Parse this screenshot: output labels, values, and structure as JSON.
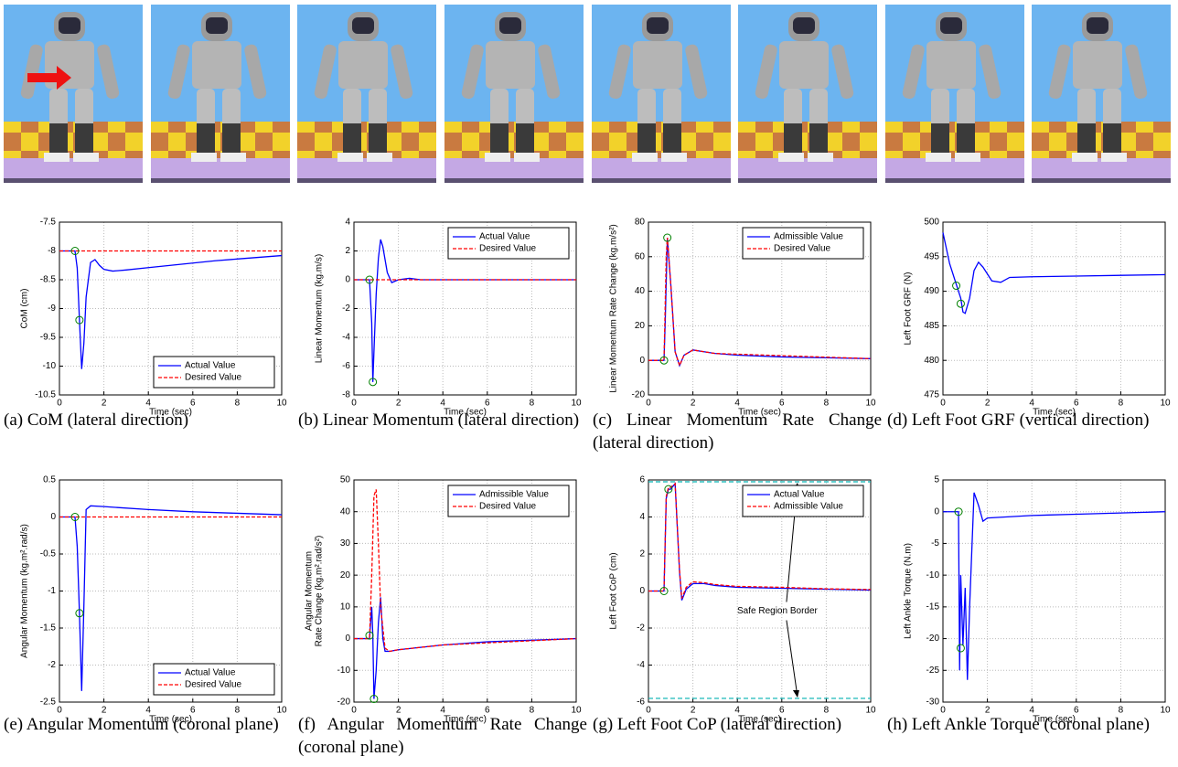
{
  "chart_data": [
    {
      "type": "line",
      "caption": "(a) CoM (lateral direction)",
      "xlabel": "Time (sec)",
      "ylabel": [
        "CoM (cm)"
      ],
      "xlim": [
        0,
        10
      ],
      "xticks": [
        0,
        2,
        4,
        6,
        8,
        10
      ],
      "ylim": [
        -10.5,
        -7.5
      ],
      "yticks": [
        -10.5,
        -10,
        -9.5,
        -9,
        -8.5,
        -8,
        -7.5
      ],
      "grid": true,
      "legend": "lower right",
      "series": [
        {
          "name": "Actual Value",
          "color": "#0000ff",
          "dash": false,
          "x": [
            0,
            0.7,
            0.8,
            0.9,
            1.0,
            1.1,
            1.2,
            1.4,
            1.6,
            1.8,
            2.0,
            2.4,
            3,
            4,
            5,
            6,
            7,
            8,
            9,
            10
          ],
          "values": [
            -8,
            -8,
            -8.3,
            -9.2,
            -10.05,
            -9.6,
            -8.8,
            -8.2,
            -8.15,
            -8.25,
            -8.32,
            -8.35,
            -8.33,
            -8.29,
            -8.25,
            -8.21,
            -8.17,
            -8.14,
            -8.11,
            -8.08
          ]
        },
        {
          "name": "Desired Value",
          "color": "#ff0000",
          "dash": true,
          "x": [
            0,
            10
          ],
          "values": [
            -8,
            -8
          ]
        }
      ],
      "markers": {
        "color": "#008000",
        "x": [
          0.7,
          0.9
        ],
        "values": [
          -8,
          -9.2
        ]
      }
    },
    {
      "type": "line",
      "caption": "(b) Linear Momentum (lateral direction)",
      "xlabel": "Time (sec)",
      "ylabel": [
        "Linear Momentum (kg.m/s)"
      ],
      "xlim": [
        0,
        10
      ],
      "xticks": [
        0,
        2,
        4,
        6,
        8,
        10
      ],
      "ylim": [
        -8,
        4
      ],
      "yticks": [
        -8,
        -6,
        -4,
        -2,
        0,
        2,
        4
      ],
      "grid": true,
      "legend": "upper right",
      "series": [
        {
          "name": "Actual Value",
          "color": "#0000ff",
          "dash": false,
          "x": [
            0,
            0.7,
            0.8,
            0.85,
            0.9,
            1.0,
            1.1,
            1.2,
            1.3,
            1.5,
            1.7,
            2,
            2.5,
            3,
            10
          ],
          "values": [
            0,
            0,
            -3,
            -7.1,
            -5,
            -1,
            1.5,
            2.8,
            2.3,
            0.5,
            -0.2,
            0,
            0.1,
            0,
            0
          ]
        },
        {
          "name": "Desired Value",
          "color": "#ff0000",
          "dash": true,
          "x": [
            0,
            10
          ],
          "values": [
            0,
            0
          ]
        }
      ],
      "markers": {
        "color": "#008000",
        "x": [
          0.7,
          0.85
        ],
        "values": [
          0,
          -7.1
        ]
      }
    },
    {
      "type": "line",
      "caption": "(c) Linear Momentum Rate Change (lateral direction)",
      "xlabel": "Time (sec)",
      "ylabel": [
        "Linear Momentum Rate Change (kg.m/s²)"
      ],
      "xlim": [
        0,
        10
      ],
      "xticks": [
        0,
        2,
        4,
        6,
        8,
        10
      ],
      "ylim": [
        -20,
        80
      ],
      "yticks": [
        -20,
        0,
        20,
        40,
        60,
        80
      ],
      "grid": true,
      "legend": "upper right",
      "series": [
        {
          "name": "Admissible Value",
          "color": "#0000ff",
          "dash": false,
          "x": [
            0,
            0.7,
            0.75,
            0.85,
            1.0,
            1.2,
            1.4,
            1.6,
            2,
            2.5,
            3,
            4,
            6,
            8,
            10
          ],
          "values": [
            0,
            0,
            20,
            71,
            45,
            5,
            -3,
            3,
            6,
            5,
            4,
            3,
            2,
            1.5,
            1
          ]
        },
        {
          "name": "Desired Value",
          "color": "#ff0000",
          "dash": true,
          "x": [
            0,
            0.7,
            0.8,
            0.85,
            1.0,
            1.2,
            1.4,
            1.6,
            2,
            3,
            10
          ],
          "values": [
            0,
            0,
            60,
            71,
            45,
            5,
            -3,
            3,
            6,
            4,
            1
          ]
        }
      ],
      "markers": {
        "color": "#008000",
        "x": [
          0.7,
          0.85
        ],
        "values": [
          0,
          71
        ]
      }
    },
    {
      "type": "line",
      "caption": "(d) Left Foot GRF (vertical direction)",
      "xlabel": "Time (sec)",
      "ylabel": [
        "Left Foot GRF (N)"
      ],
      "xlim": [
        0,
        10
      ],
      "xticks": [
        0,
        2,
        4,
        6,
        8,
        10
      ],
      "ylim": [
        475,
        500
      ],
      "yticks": [
        475,
        480,
        485,
        490,
        495,
        500
      ],
      "grid": true,
      "series": [
        {
          "color": "#0000ff",
          "dash": false,
          "x": [
            0,
            0.3,
            0.6,
            0.8,
            0.9,
            1.0,
            1.2,
            1.4,
            1.6,
            1.8,
            2.2,
            2.6,
            3,
            4,
            6,
            8,
            10
          ],
          "values": [
            498.5,
            494,
            491,
            489,
            487,
            486.8,
            489,
            493,
            494.2,
            493.5,
            491.5,
            491.3,
            492,
            492.1,
            492.2,
            492.3,
            492.4
          ]
        }
      ],
      "markers": {
        "color": "#008000",
        "x": [
          0.6,
          0.8
        ],
        "values": [
          490.8,
          488.2
        ]
      }
    },
    {
      "type": "line",
      "caption": "(e) Angular Momentum (coronal plane)",
      "xlabel": "Time (sec)",
      "ylabel": [
        "Angular Momentum (kg.m².rad/s)"
      ],
      "xlim": [
        0,
        10
      ],
      "xticks": [
        0,
        2,
        4,
        6,
        8,
        10
      ],
      "ylim": [
        -2.5,
        0.5
      ],
      "yticks": [
        -2.5,
        -2,
        -1.5,
        -1,
        -0.5,
        0,
        0.5
      ],
      "grid": true,
      "legend": "lower right",
      "series": [
        {
          "name": "Actual Value",
          "color": "#0000ff",
          "dash": false,
          "x": [
            0,
            0.7,
            0.8,
            0.9,
            1.0,
            1.1,
            1.2,
            1.4,
            2,
            4,
            6,
            8,
            10
          ],
          "values": [
            0,
            0,
            -0.4,
            -1.3,
            -2.35,
            -1.2,
            0.1,
            0.15,
            0.14,
            0.1,
            0.07,
            0.05,
            0.03
          ]
        },
        {
          "name": "Desired Value",
          "color": "#ff0000",
          "dash": true,
          "x": [
            0,
            10
          ],
          "values": [
            0,
            0
          ]
        }
      ],
      "markers": {
        "color": "#008000",
        "x": [
          0.7,
          0.9
        ],
        "values": [
          0,
          -1.3
        ]
      }
    },
    {
      "type": "line",
      "caption": "(f) Angular Momentum Rate Change (coronal plane)",
      "xlabel": "Time (sec)",
      "ylabel": [
        "Angular Momentum",
        "Rate Change (kg.m².rad/s²)"
      ],
      "xlim": [
        0,
        10
      ],
      "xticks": [
        0,
        2,
        4,
        6,
        8,
        10
      ],
      "ylim": [
        -20,
        50
      ],
      "yticks": [
        -20,
        -10,
        0,
        10,
        20,
        30,
        40,
        50
      ],
      "grid": true,
      "legend": "upper right",
      "series": [
        {
          "name": "Admissible Value",
          "color": "#0000ff",
          "dash": false,
          "x": [
            0,
            0.7,
            0.8,
            0.85,
            0.9,
            1.0,
            1.1,
            1.2,
            1.3,
            1.4,
            1.6,
            2,
            4,
            6,
            8,
            10
          ],
          "values": [
            0,
            0,
            10,
            1,
            -19,
            -10,
            5,
            13,
            0,
            -4,
            -4,
            -3.5,
            -2,
            -1,
            -0.5,
            0
          ]
        },
        {
          "name": "Desired Value",
          "color": "#ff0000",
          "dash": true,
          "x": [
            0,
            0.7,
            0.8,
            0.9,
            1.0,
            1.1,
            1.2,
            1.4,
            1.6,
            2,
            4,
            10
          ],
          "values": [
            0,
            0,
            20,
            45,
            47,
            30,
            10,
            -3,
            -4,
            -3.5,
            -2,
            0
          ]
        }
      ],
      "markers": {
        "color": "#008000",
        "x": [
          0.7,
          0.9
        ],
        "values": [
          1,
          -19
        ]
      }
    },
    {
      "type": "line",
      "caption": "(g) Left Foot CoP (lateral direction)",
      "xlabel": "Time (sec)",
      "ylabel": [
        "Left Foot CoP (cm)"
      ],
      "xlim": [
        0,
        10
      ],
      "xticks": [
        0,
        2,
        4,
        6,
        8,
        10
      ],
      "ylim": [
        -6,
        6
      ],
      "yticks": [
        -6,
        -4,
        -2,
        0,
        2,
        4,
        6
      ],
      "grid": true,
      "legend": "upper right",
      "series": [
        {
          "name": "Actual Value",
          "color": "#0000ff",
          "dash": false,
          "x": [
            0,
            0.7,
            0.8,
            0.9,
            1.0,
            1.2,
            1.4,
            1.5,
            1.7,
            2,
            2.5,
            3,
            4,
            6,
            8,
            10
          ],
          "values": [
            0,
            0,
            5,
            5.5,
            5.5,
            5.8,
            1,
            -0.5,
            0.1,
            0.4,
            0.4,
            0.3,
            0.2,
            0.15,
            0.1,
            0.05
          ]
        },
        {
          "name": "Admissible Value",
          "color": "#ff0000",
          "dash": true,
          "x": [
            0,
            0.7,
            0.8,
            0.9,
            1.0,
            1.2,
            1.4,
            1.5,
            1.7,
            2,
            2.5,
            3,
            4,
            6,
            8,
            10
          ],
          "values": [
            0,
            0,
            5.1,
            5.6,
            5.6,
            5.8,
            1.1,
            -0.4,
            0.2,
            0.5,
            0.45,
            0.35,
            0.25,
            0.2,
            0.12,
            0.08
          ]
        }
      ],
      "markers": {
        "color": "#008000",
        "x": [
          0.7,
          0.9
        ],
        "values": [
          0,
          5.5
        ]
      },
      "borders": {
        "color": "#00b0b0",
        "values": [
          5.9,
          -5.8
        ]
      },
      "annotation": "Safe Region Border"
    },
    {
      "type": "line",
      "caption": "(h) Left Ankle Torque (coronal plane)",
      "xlabel": "Time (sec)",
      "ylabel": [
        "Left Ankle Torque (N.m)"
      ],
      "xlim": [
        0,
        10
      ],
      "xticks": [
        0,
        2,
        4,
        6,
        8,
        10
      ],
      "ylim": [
        -30,
        5
      ],
      "yticks": [
        -30,
        -25,
        -20,
        -15,
        -10,
        -5,
        0,
        5
      ],
      "grid": true,
      "series": [
        {
          "color": "#0000ff",
          "dash": false,
          "x": [
            0,
            0.7,
            0.75,
            0.8,
            0.9,
            1.0,
            1.1,
            1.2,
            1.4,
            1.6,
            1.8,
            2,
            3,
            4,
            6,
            8,
            10
          ],
          "values": [
            0,
            0,
            -25,
            -10,
            -21,
            -12,
            -26.5,
            -15,
            3,
            1,
            -1.5,
            -1,
            -0.8,
            -0.6,
            -0.4,
            -0.2,
            0
          ]
        }
      ],
      "markers": {
        "color": "#008000",
        "x": [
          0.7,
          0.8
        ],
        "values": [
          0,
          -21.5
        ]
      }
    }
  ]
}
